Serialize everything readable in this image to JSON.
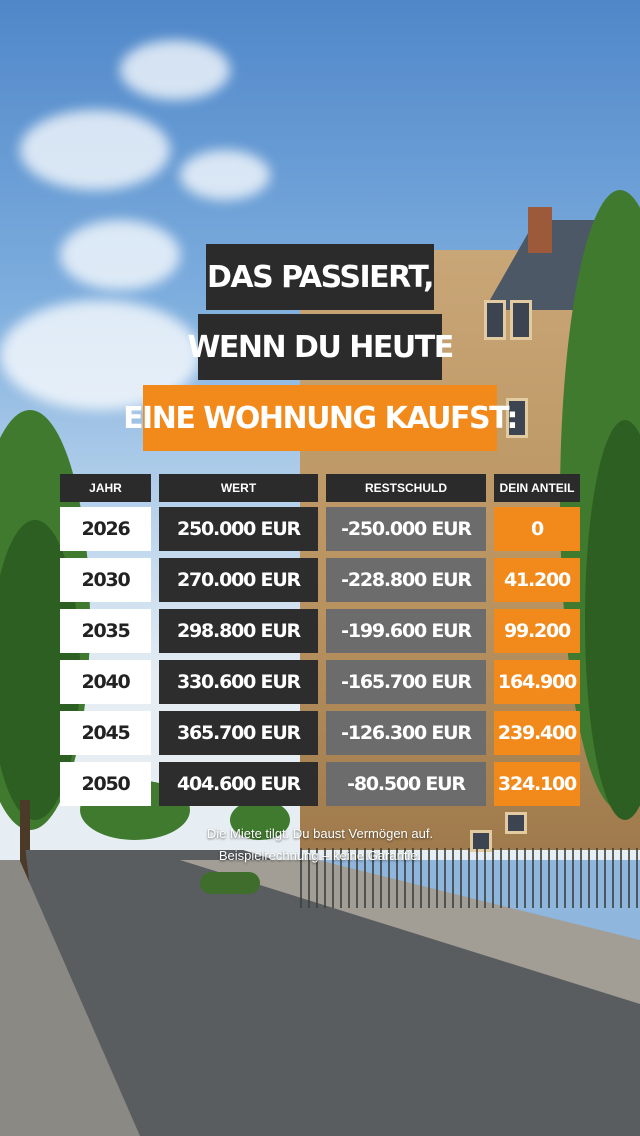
{
  "headline": {
    "line1": "DAS PASSIERT,",
    "line2": "WENN DU HEUTE",
    "line3": "EINE WOHNUNG KAUFST:"
  },
  "colors": {
    "accent": "#f28a1b",
    "dark": "#2b2b2b",
    "grey": "#6c6c6c",
    "white": "#ffffff"
  },
  "table": {
    "headers": [
      "JAHR",
      "WERT",
      "RESTSCHULD",
      "DEIN ANTEIL"
    ],
    "rows": [
      {
        "jahr": "2026",
        "wert": "250.000 EUR",
        "restschuld": "-250.000 EUR",
        "anteil": "0"
      },
      {
        "jahr": "2030",
        "wert": "270.000 EUR",
        "restschuld": "-228.800 EUR",
        "anteil": "41.200"
      },
      {
        "jahr": "2035",
        "wert": "298.800 EUR",
        "restschuld": "-199.600 EUR",
        "anteil": "99.200"
      },
      {
        "jahr": "2040",
        "wert": "330.600 EUR",
        "restschuld": "-165.700 EUR",
        "anteil": "164.900"
      },
      {
        "jahr": "2045",
        "wert": "365.700 EUR",
        "restschuld": "-126.300 EUR",
        "anteil": "239.400"
      },
      {
        "jahr": "2050",
        "wert": "404.600 EUR",
        "restschuld": "-80.500 EUR",
        "anteil": "324.100"
      }
    ]
  },
  "footnote": {
    "line1": "Die Miete tilgt. Du baust Vermögen auf.",
    "line2": "Beispielrechnung – keine Garantie."
  }
}
